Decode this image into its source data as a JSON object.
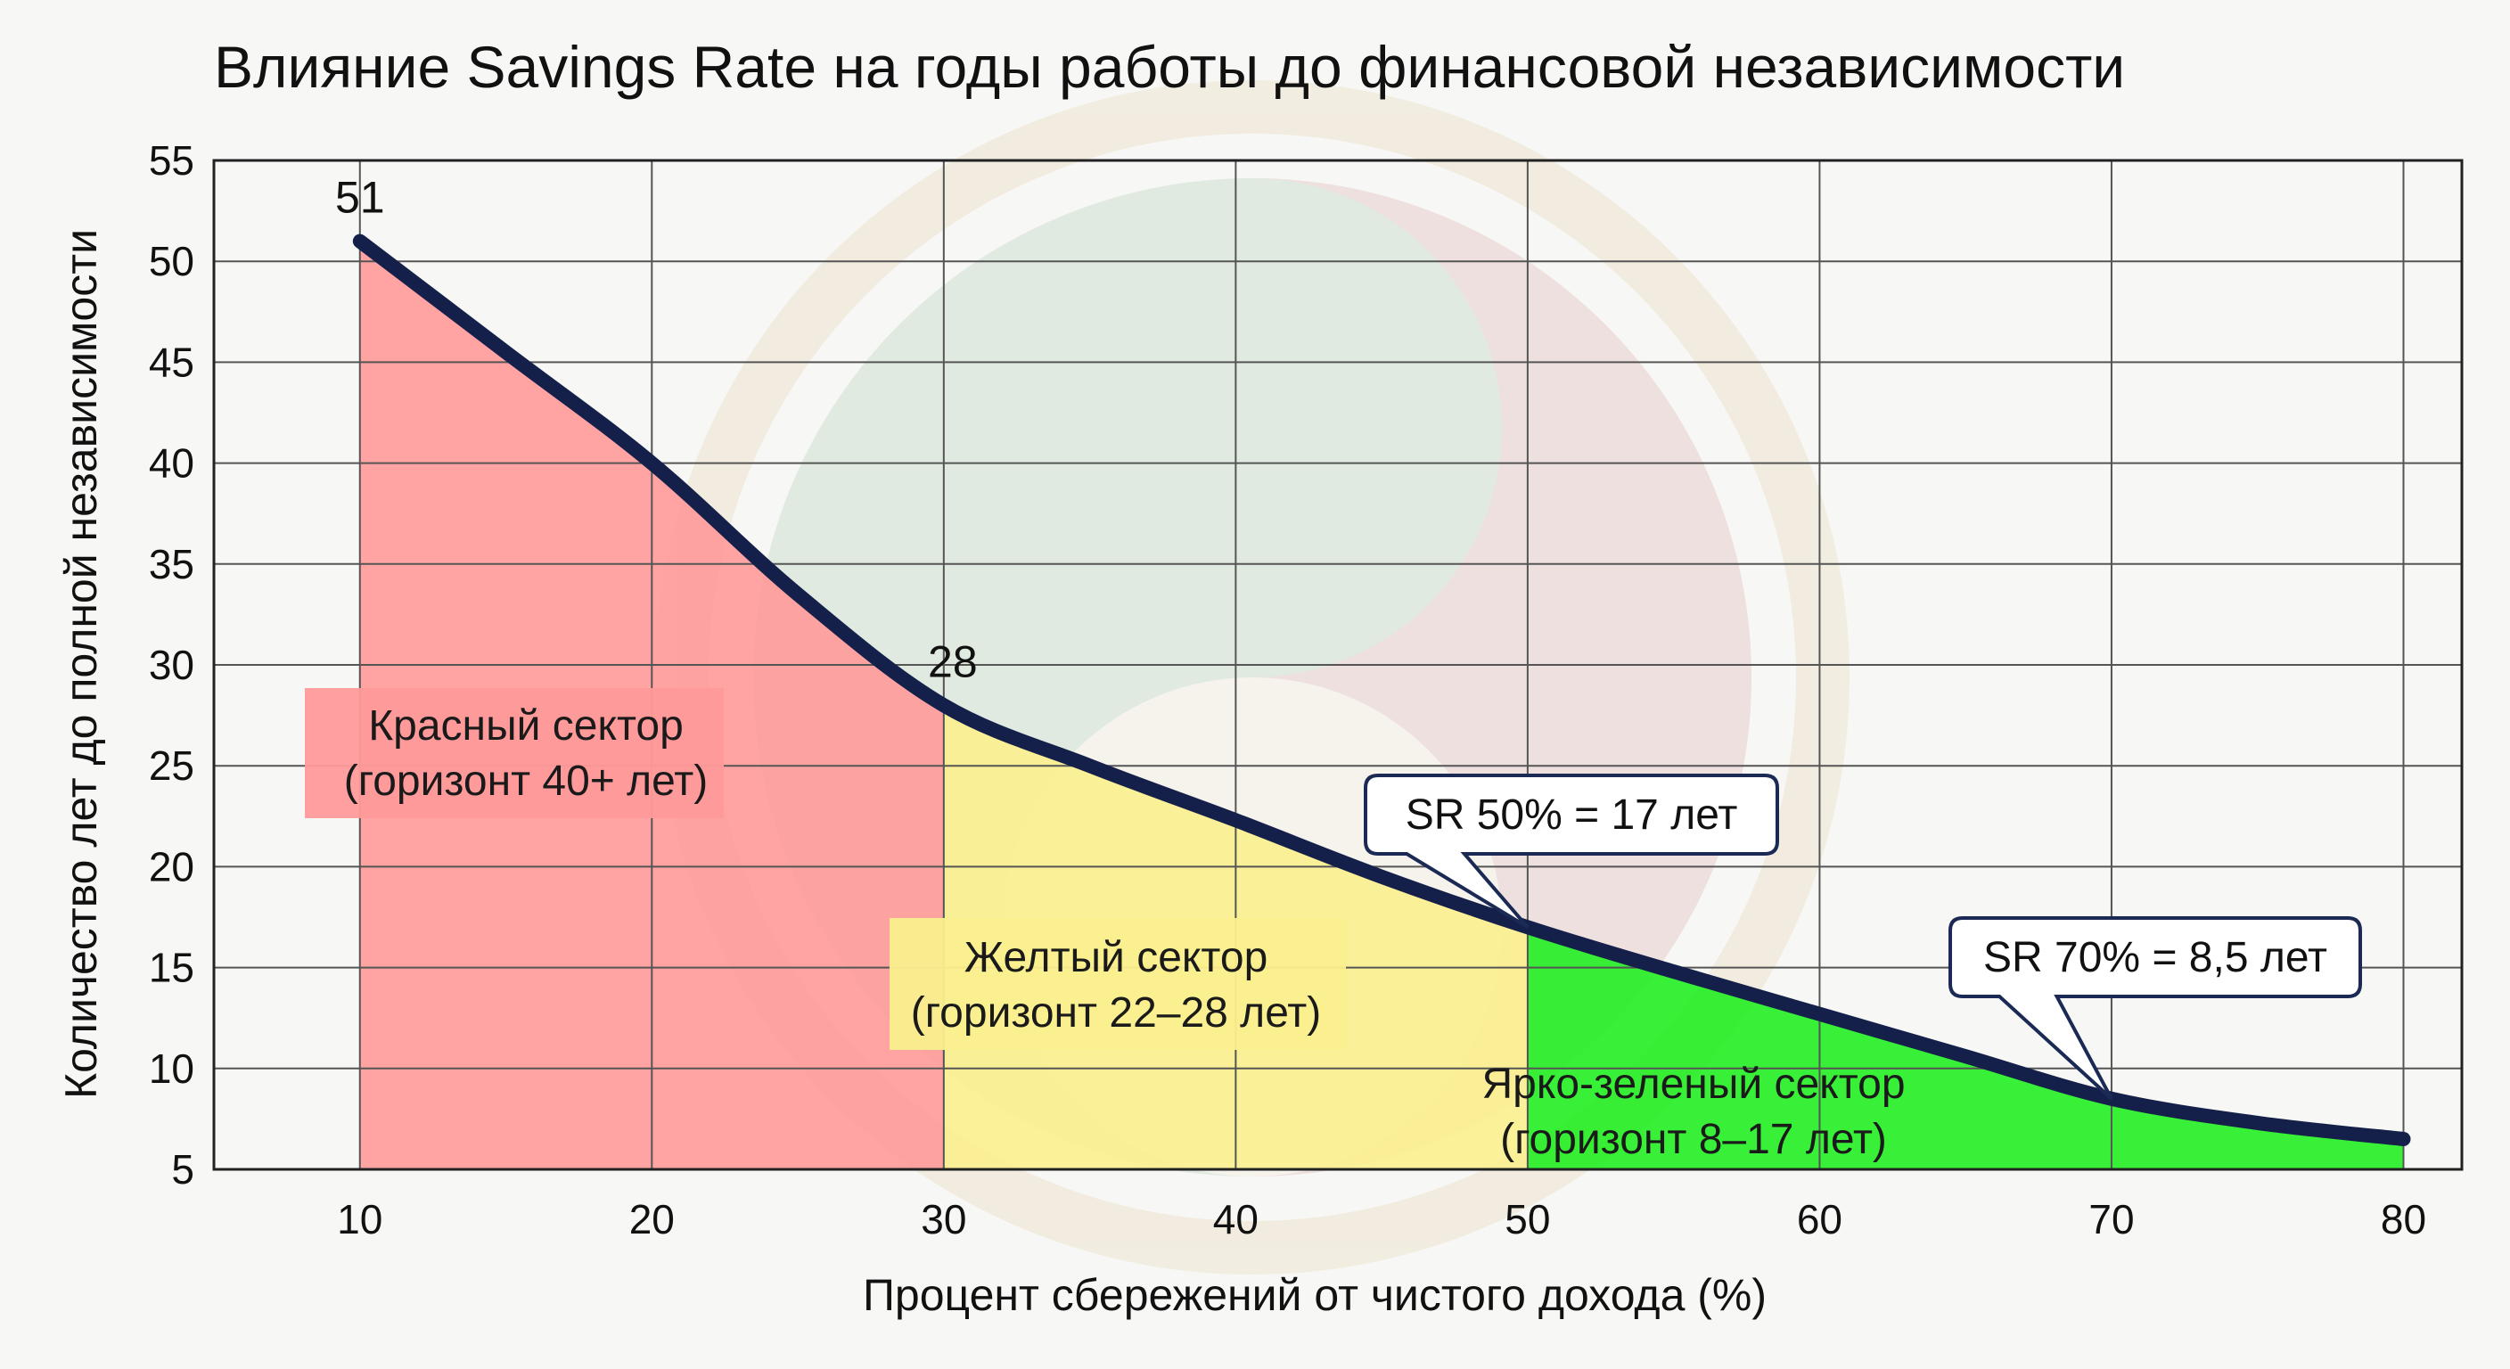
{
  "chart_data": {
    "type": "area",
    "title": "Влияние Savings Rate на годы работы до финансовой независимости",
    "xlabel": "Процент сбережений от чистого дохода (%)",
    "ylabel": "Количество лет до полной независимости",
    "xlim": [
      5,
      82
    ],
    "ylim": [
      5,
      55
    ],
    "xticks": [
      10,
      20,
      30,
      40,
      50,
      60,
      70,
      80
    ],
    "yticks": [
      5,
      10,
      15,
      20,
      25,
      30,
      35,
      40,
      45,
      50,
      55
    ],
    "grid": true,
    "legend": "none",
    "series": [
      {
        "x": [
          10,
          15,
          20,
          25,
          30,
          35,
          40,
          45,
          50,
          55,
          60,
          65,
          70,
          75,
          80
        ],
        "y": [
          51,
          45.5,
          40,
          33.5,
          28,
          25,
          22.3,
          19.5,
          17,
          14.8,
          12.7,
          10.6,
          8.5,
          7.3,
          6.5
        ]
      }
    ],
    "point_labels": [
      {
        "x": 10,
        "y": 51,
        "text": "51"
      },
      {
        "x": 30,
        "y": 28,
        "text": "28"
      }
    ],
    "sectors": [
      {
        "x_from": 10,
        "x_to": 30,
        "color": "#ff9a9a",
        "label_line1": "Красный сектор",
        "label_line2": "(горизонт 40+ лет)"
      },
      {
        "x_from": 30,
        "x_to": 50,
        "color": "#fbef8e",
        "label_line1": "Желтый сектор",
        "label_line2": "(горизонт 22–28 лет)"
      },
      {
        "x_from": 50,
        "x_to": 80,
        "color": "#22ee22",
        "label_line1": "Ярко-зеленый сектор",
        "label_line2": "(горизонт 8–17 лет)"
      }
    ],
    "callouts": [
      {
        "x": 50,
        "y": 17,
        "text": "SR 50% = 17 лет"
      },
      {
        "x": 70,
        "y": 8.5,
        "text": "SR 70% = 8,5 лет"
      }
    ],
    "colors": {
      "line": "#14204a",
      "grid": "#555555",
      "callout_border": "#1a2a55"
    }
  }
}
